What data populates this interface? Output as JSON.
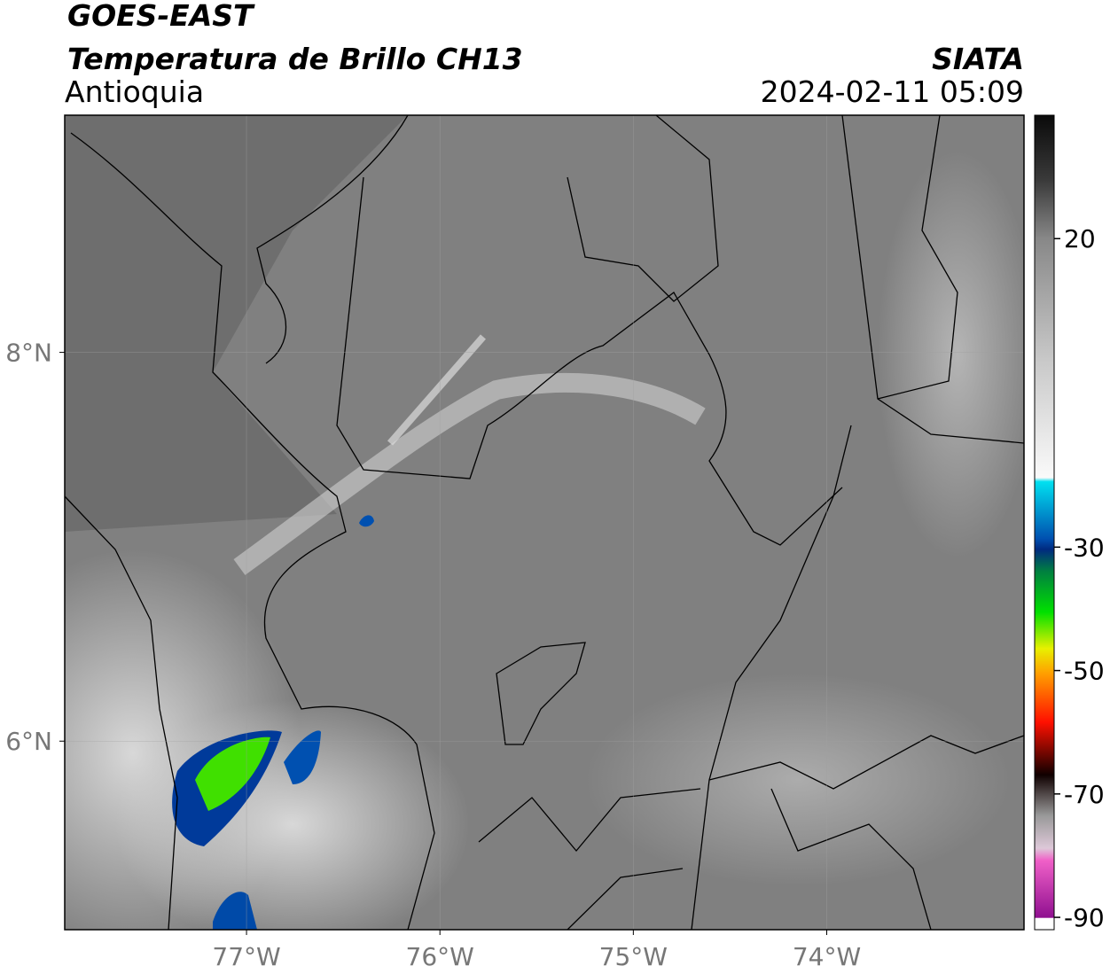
{
  "header": {
    "title": "GOES-EAST",
    "subtitle": "Temperatura de Brillo CH13",
    "region": "Antioquia",
    "source": "SIATA",
    "timestamp": "2024-02-11 05:09"
  },
  "map": {
    "xlim": [
      -77.94,
      -72.98
    ],
    "ylim": [
      5.03,
      9.22
    ],
    "xticks": [
      {
        "value": -77,
        "label": "77°W"
      },
      {
        "value": -76,
        "label": "76°W"
      },
      {
        "value": -75,
        "label": "75°W"
      },
      {
        "value": -74,
        "label": "74°W"
      }
    ],
    "yticks": [
      {
        "value": 8,
        "label": "8°N"
      },
      {
        "value": 6,
        "label": "6°N"
      }
    ],
    "grid": true
  },
  "colorbar": {
    "lim": [
      -92,
      40
    ],
    "ticks": [
      20,
      -30,
      -50,
      -70,
      -90
    ]
  }
}
